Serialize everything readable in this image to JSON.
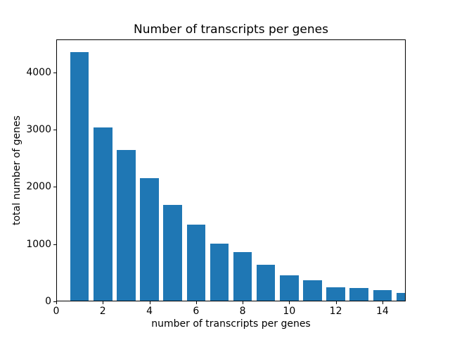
{
  "figure": {
    "background": "#ffffff",
    "axis_color": "#000000",
    "text_color": "#000000"
  },
  "chart_data": {
    "type": "bar",
    "title": "Number of transcripts per genes",
    "xlabel": "number of transcripts per genes",
    "ylabel": "total number of genes",
    "x": [
      1,
      2,
      3,
      4,
      5,
      6,
      7,
      8,
      9,
      10,
      11,
      12,
      13,
      14,
      15
    ],
    "values": [
      4350,
      3040,
      2640,
      2150,
      1685,
      1340,
      1005,
      855,
      635,
      450,
      370,
      248,
      228,
      200,
      145
    ],
    "bar_color": "#1f77b4",
    "bar_width": 0.8,
    "xlim": [
      0,
      15
    ],
    "ylim": [
      0,
      4573
    ],
    "xticks": [
      0,
      2,
      4,
      6,
      8,
      10,
      12,
      14
    ],
    "yticks": [
      0,
      1000,
      2000,
      3000,
      4000
    ],
    "grid": false,
    "legend": null
  }
}
